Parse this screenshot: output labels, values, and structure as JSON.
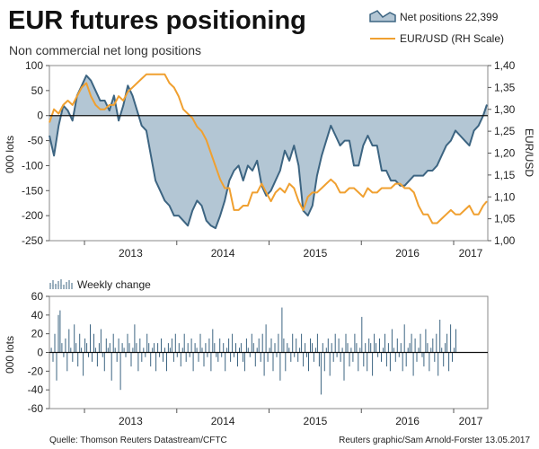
{
  "title": "EUR futures positioning",
  "subtitle": "Non commercial net long positions",
  "source_left": "Quelle: Thomson Reuters Datastream/CFTC",
  "source_right": "Reuters graphic/Sam Arnold-Forster 13.05.2017",
  "colors": {
    "area_fill": "#b3c6d4",
    "area_line": "#3d6582",
    "eurusd": "#f0a030",
    "weekly": "#3d6582",
    "zero": "#111111"
  },
  "chart_data": [
    {
      "type": "area",
      "legend": [
        "Net positions 22,399",
        "EUR/USD (RH Scale)"
      ],
      "legend_position": "top-right",
      "ylabel_left": "000 lots",
      "ylabel_right": "EUR/USD",
      "ylim_left": [
        -250,
        100
      ],
      "ylim_right": [
        1.0,
        1.4
      ],
      "yticks_left": [
        "100",
        "50",
        "0",
        "-50",
        "-100",
        "-150",
        "-200",
        "-250"
      ],
      "yticks_right": [
        "1,40",
        "1,35",
        "1,30",
        "1,25",
        "1,20",
        "1,15",
        "1,10",
        "1,05",
        "1,00"
      ],
      "x_ticks": [
        "2013",
        "2014",
        "2015",
        "2016",
        "2017"
      ],
      "x_range": [
        2012.62,
        2017.37
      ],
      "series": [
        {
          "name": "Net positions 22,399",
          "x": [
            2012.62,
            2012.67,
            2012.72,
            2012.77,
            2012.82,
            2012.87,
            2012.92,
            2012.97,
            2013.02,
            2013.07,
            2013.12,
            2013.17,
            2013.22,
            2013.27,
            2013.32,
            2013.37,
            2013.42,
            2013.47,
            2013.52,
            2013.57,
            2013.62,
            2013.67,
            2013.72,
            2013.77,
            2013.82,
            2013.87,
            2013.92,
            2013.97,
            2014.02,
            2014.07,
            2014.12,
            2014.17,
            2014.22,
            2014.27,
            2014.32,
            2014.37,
            2014.42,
            2014.47,
            2014.52,
            2014.57,
            2014.62,
            2014.67,
            2014.72,
            2014.77,
            2014.82,
            2014.87,
            2014.92,
            2014.97,
            2015.02,
            2015.07,
            2015.12,
            2015.17,
            2015.22,
            2015.27,
            2015.32,
            2015.37,
            2015.42,
            2015.47,
            2015.52,
            2015.57,
            2015.62,
            2015.67,
            2015.72,
            2015.77,
            2015.82,
            2015.87,
            2015.92,
            2015.97,
            2016.02,
            2016.07,
            2016.12,
            2016.17,
            2016.22,
            2016.27,
            2016.32,
            2016.37,
            2016.42,
            2016.47,
            2016.52,
            2016.57,
            2016.62,
            2016.67,
            2016.72,
            2016.77,
            2016.82,
            2016.87,
            2016.92,
            2016.97,
            2017.02,
            2017.07,
            2017.12,
            2017.17,
            2017.22,
            2017.27,
            2017.32,
            2017.36
          ],
          "values": [
            -40,
            -80,
            -20,
            20,
            10,
            -10,
            40,
            60,
            80,
            70,
            50,
            30,
            30,
            10,
            40,
            -10,
            20,
            60,
            40,
            10,
            -20,
            -30,
            -80,
            -130,
            -150,
            -170,
            -180,
            -200,
            -200,
            -210,
            -220,
            -190,
            -170,
            -180,
            -210,
            -220,
            -225,
            -200,
            -170,
            -130,
            -110,
            -100,
            -130,
            -100,
            -110,
            -90,
            -140,
            -160,
            -150,
            -130,
            -110,
            -70,
            -90,
            -60,
            -100,
            -190,
            -200,
            -180,
            -120,
            -80,
            -50,
            -20,
            -40,
            -60,
            -50,
            -50,
            -100,
            -100,
            -60,
            -40,
            -60,
            -60,
            -110,
            -110,
            -130,
            -130,
            -140,
            -140,
            -130,
            -120,
            -120,
            -120,
            -110,
            -110,
            -100,
            -80,
            -60,
            -50,
            -30,
            -40,
            -50,
            -60,
            -30,
            -20,
            0,
            22
          ]
        },
        {
          "name": "EUR/USD (RH Scale)",
          "x": [
            2012.62,
            2012.67,
            2012.72,
            2012.77,
            2012.82,
            2012.87,
            2012.92,
            2012.97,
            2013.02,
            2013.07,
            2013.12,
            2013.17,
            2013.22,
            2013.27,
            2013.32,
            2013.37,
            2013.42,
            2013.47,
            2013.52,
            2013.57,
            2013.62,
            2013.67,
            2013.72,
            2013.77,
            2013.82,
            2013.87,
            2013.92,
            2013.97,
            2014.02,
            2014.07,
            2014.12,
            2014.17,
            2014.22,
            2014.27,
            2014.32,
            2014.37,
            2014.42,
            2014.47,
            2014.52,
            2014.57,
            2014.62,
            2014.67,
            2014.72,
            2014.77,
            2014.82,
            2014.87,
            2014.92,
            2014.97,
            2015.02,
            2015.07,
            2015.12,
            2015.17,
            2015.22,
            2015.27,
            2015.32,
            2015.37,
            2015.42,
            2015.47,
            2015.52,
            2015.57,
            2015.62,
            2015.67,
            2015.72,
            2015.77,
            2015.82,
            2015.87,
            2015.92,
            2015.97,
            2016.02,
            2016.07,
            2016.12,
            2016.17,
            2016.22,
            2016.27,
            2016.32,
            2016.37,
            2016.42,
            2016.47,
            2016.52,
            2016.57,
            2016.62,
            2016.67,
            2016.72,
            2016.77,
            2016.82,
            2016.87,
            2016.92,
            2016.97,
            2017.02,
            2017.07,
            2017.12,
            2017.17,
            2017.22,
            2017.27,
            2017.32,
            2017.36
          ],
          "values": [
            1.27,
            1.3,
            1.29,
            1.31,
            1.32,
            1.31,
            1.33,
            1.35,
            1.36,
            1.33,
            1.31,
            1.3,
            1.3,
            1.31,
            1.31,
            1.33,
            1.32,
            1.34,
            1.35,
            1.36,
            1.37,
            1.38,
            1.38,
            1.38,
            1.38,
            1.38,
            1.36,
            1.35,
            1.33,
            1.3,
            1.29,
            1.28,
            1.26,
            1.25,
            1.23,
            1.2,
            1.17,
            1.14,
            1.12,
            1.12,
            1.07,
            1.07,
            1.08,
            1.08,
            1.11,
            1.11,
            1.13,
            1.11,
            1.09,
            1.11,
            1.12,
            1.11,
            1.13,
            1.12,
            1.09,
            1.07,
            1.1,
            1.11,
            1.11,
            1.12,
            1.13,
            1.14,
            1.13,
            1.11,
            1.11,
            1.12,
            1.12,
            1.11,
            1.1,
            1.12,
            1.11,
            1.11,
            1.12,
            1.12,
            1.12,
            1.13,
            1.13,
            1.12,
            1.12,
            1.11,
            1.08,
            1.06,
            1.06,
            1.04,
            1.04,
            1.05,
            1.06,
            1.07,
            1.06,
            1.06,
            1.07,
            1.08,
            1.06,
            1.06,
            1.08,
            1.09
          ]
        }
      ]
    },
    {
      "type": "bar",
      "legend": [
        "Weekly change"
      ],
      "legend_position": "top-left",
      "ylabel": "000 lots",
      "ylim": [
        -60,
        60
      ],
      "yticks": [
        "60",
        "40",
        "20",
        "0",
        "-20",
        "-40",
        "-60"
      ],
      "x_ticks": [
        "2013",
        "2014",
        "2015",
        "2016",
        "2017"
      ],
      "x_range": [
        2012.62,
        2017.37
      ],
      "series": [
        {
          "name": "Weekly change",
          "start": 2012.64,
          "step": 0.01923,
          "values": [
            5,
            -10,
            20,
            -30,
            40,
            45,
            10,
            -5,
            15,
            -20,
            25,
            5,
            -10,
            30,
            10,
            -15,
            20,
            5,
            -25,
            15,
            10,
            -5,
            30,
            -10,
            20,
            5,
            -15,
            10,
            25,
            -5,
            -20,
            15,
            5,
            10,
            -30,
            20,
            5,
            -10,
            15,
            -40,
            10,
            5,
            -5,
            20,
            10,
            -15,
            5,
            30,
            10,
            -20,
            15,
            -10,
            5,
            -5,
            20,
            10,
            -15,
            5,
            10,
            -20,
            10,
            -5,
            15,
            -10,
            5,
            -20,
            10,
            5,
            15,
            -10,
            20,
            -5,
            10,
            -15,
            5,
            20,
            -10,
            10,
            -5,
            15,
            -20,
            10,
            5,
            -10,
            20,
            5,
            -15,
            10,
            -5,
            15,
            -20,
            25,
            10,
            -5,
            -10,
            15,
            -5,
            10,
            -20,
            5,
            15,
            -10,
            20,
            -5,
            10,
            -15,
            5,
            10,
            -10,
            -20,
            15,
            5,
            -5,
            20,
            10,
            -15,
            5,
            15,
            -10,
            20,
            -25,
            30,
            -10,
            5,
            15,
            -20,
            10,
            -5,
            20,
            -30,
            48,
            15,
            -20,
            10,
            5,
            -10,
            20,
            -5,
            15,
            -10,
            5,
            20,
            -15,
            10,
            -5,
            -20,
            15,
            10,
            -10,
            5,
            20,
            -15,
            -45,
            10,
            -20,
            5,
            15,
            -25,
            10,
            -10,
            20,
            -5,
            15,
            -10,
            5,
            -30,
            20,
            10,
            -15,
            5,
            -10,
            20,
            10,
            -20,
            5,
            38,
            -15,
            10,
            -20,
            15,
            10,
            -25,
            20,
            10,
            -5,
            15,
            -10,
            5,
            20,
            -15,
            10,
            -20,
            25,
            5,
            -10,
            15,
            -5,
            10,
            -20,
            30,
            -15,
            5,
            10,
            20,
            -25,
            15,
            -10,
            5,
            20,
            -5,
            -15,
            25,
            10,
            -20,
            5,
            15,
            -10,
            20,
            -25,
            35,
            5,
            -15,
            10,
            20,
            -20,
            30,
            -10,
            5,
            25
          ]
        }
      ]
    }
  ]
}
